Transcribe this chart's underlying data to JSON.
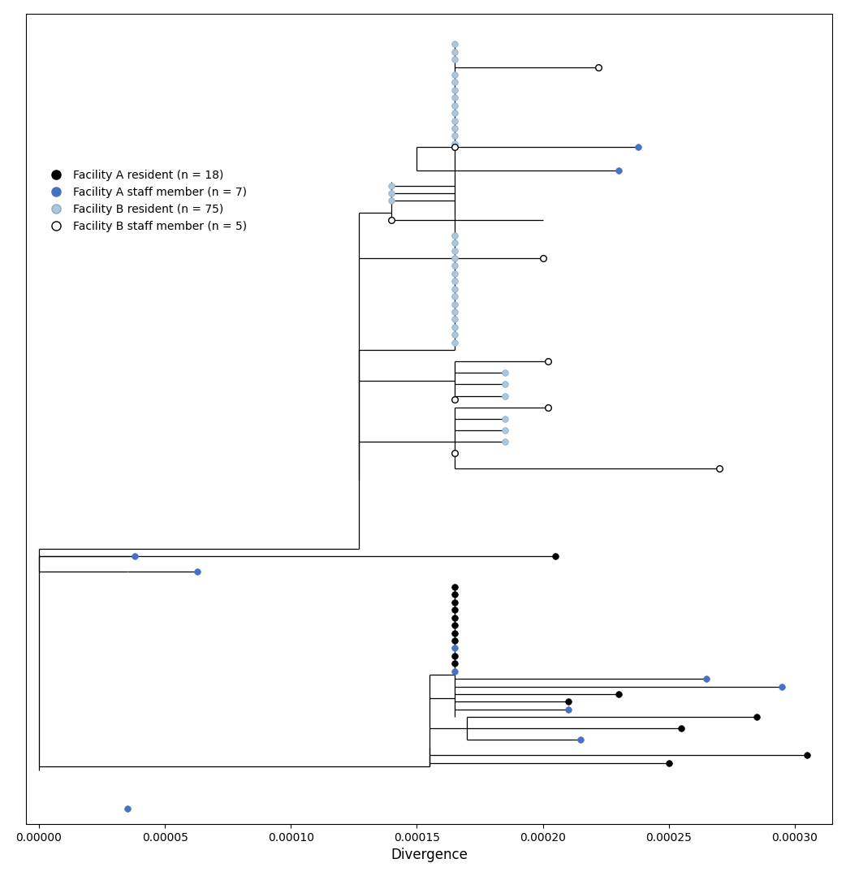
{
  "xlabel": "Divergence",
  "xlim": [
    -5e-06,
    0.000315
  ],
  "xticks": [
    0.0,
    5e-05,
    0.0001,
    0.00015,
    0.0002,
    0.00025,
    0.0003
  ],
  "xticklabels": [
    "0.00000",
    "0.00005",
    "0.00010",
    "0.00015",
    "0.00020",
    "0.00025",
    "0.00030"
  ],
  "col_ar": "#000000",
  "col_as": "#4472C4",
  "col_br": "#adc6e0",
  "col_br_edge": "#8aaabf",
  "col_bs_face": "#ffffff",
  "col_bs_edge": "#000000",
  "figsize": [
    10.42,
    10.79
  ],
  "dpi": 100,
  "legend_labels": [
    "Facility A resident (n = 18)",
    "Facility A staff member (n = 7)",
    "Facility B resident (n = 75)",
    "Facility B staff member (n = 5)"
  ]
}
